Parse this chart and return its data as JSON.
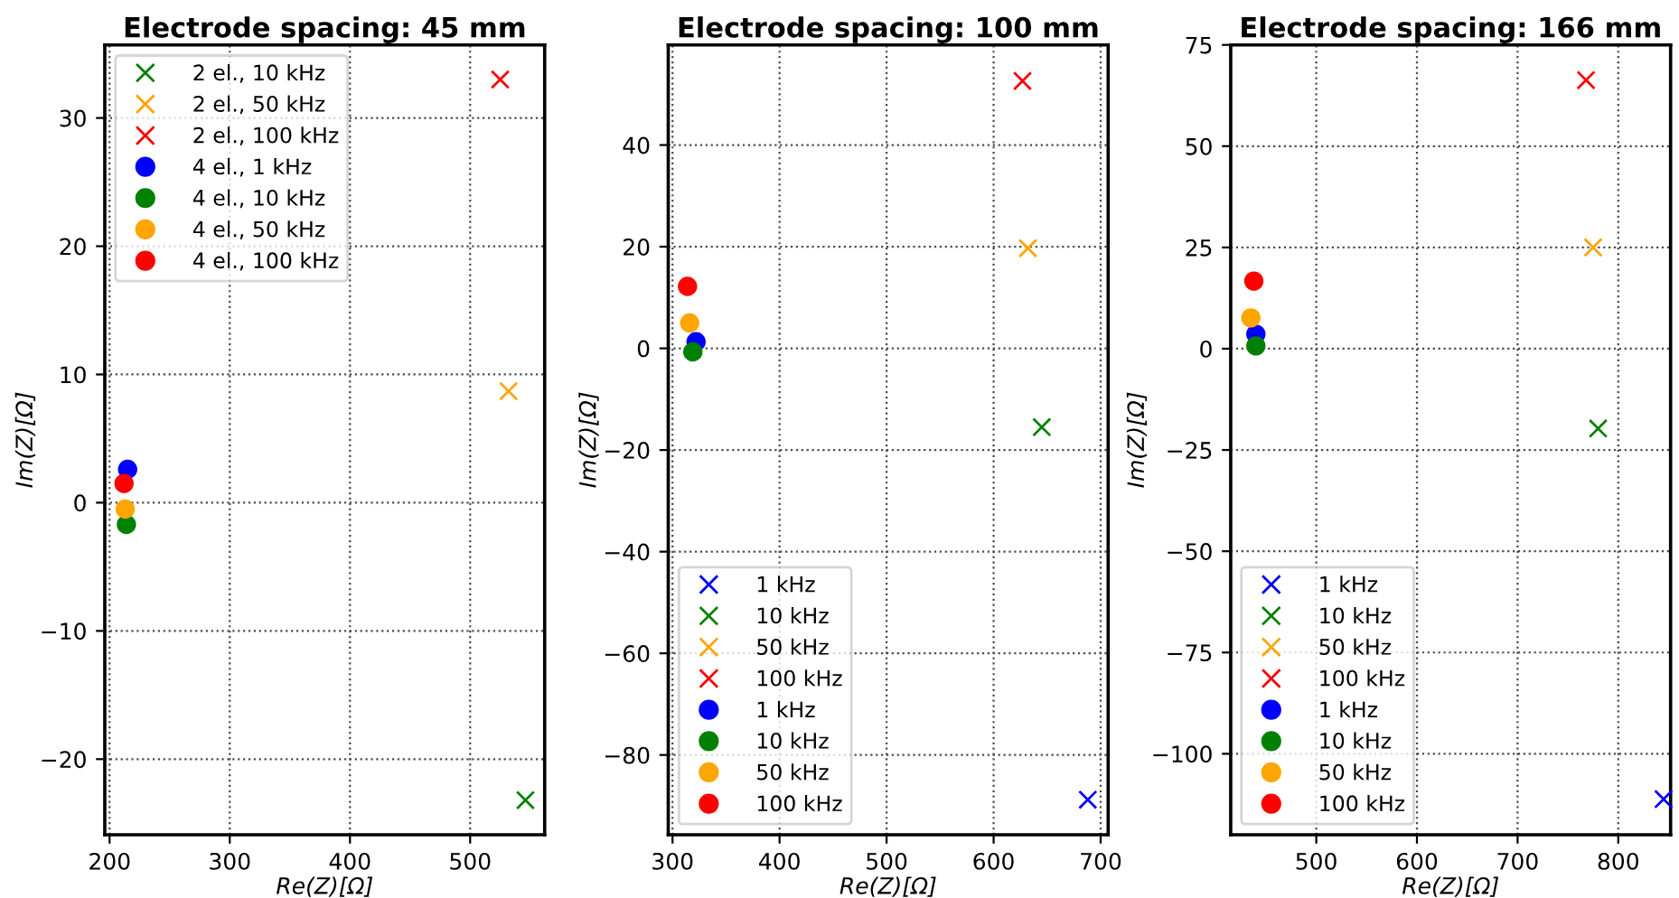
{
  "chart_data": [
    {
      "type": "scatter",
      "title": "Electrode spacing: 45 mm",
      "xlabel": "Re(Z)[Ω]",
      "ylabel": "Im(Z)[Ω]",
      "grid": true,
      "legend": "top left",
      "xlim": [
        196,
        562
      ],
      "ylim": [
        -25.9,
        35.7
      ],
      "xticks": [
        200,
        300,
        400,
        500
      ],
      "yticks": [
        {
          "value": -20,
          "label": "−20"
        },
        {
          "value": -10,
          "label": "−10"
        },
        0,
        10,
        20,
        30
      ],
      "series": [
        {
          "name": "2 el., 10 kHz",
          "color": "#008000",
          "marker": "cross",
          "x": [
            546
          ],
          "values": [
            -23.2
          ]
        },
        {
          "name": "2 el., 50 kHz",
          "color": "#ffa500",
          "marker": "cross",
          "x": [
            532
          ],
          "values": [
            8.7
          ]
        },
        {
          "name": "2 el., 100 kHz",
          "color": "#ff0000",
          "marker": "cross",
          "x": [
            525
          ],
          "values": [
            33
          ]
        },
        {
          "name": "4 el., 1 kHz",
          "color": "#0000ff",
          "marker": "circle",
          "x": [
            215
          ],
          "values": [
            2.6
          ]
        },
        {
          "name": "4 el., 10 kHz",
          "color": "#008000",
          "marker": "circle",
          "x": [
            214
          ],
          "values": [
            -1.7
          ]
        },
        {
          "name": "4 el., 50 kHz",
          "color": "#ffa500",
          "marker": "circle",
          "x": [
            213
          ],
          "values": [
            -0.5
          ]
        },
        {
          "name": "4 el., 100 kHz",
          "color": "#ff0000",
          "marker": "circle",
          "x": [
            212
          ],
          "values": [
            1.5
          ]
        }
      ]
    },
    {
      "type": "scatter",
      "title": "Electrode spacing: 100 mm",
      "xlabel": "Re(Z)[Ω]",
      "ylabel": "Im(Z)[Ω]",
      "grid": true,
      "legend": "bottom left",
      "xlim": [
        296,
        707
      ],
      "ylim": [
        -95.7,
        59.7
      ],
      "xticks": [
        300,
        400,
        500,
        600,
        700
      ],
      "yticks": [
        {
          "value": -80,
          "label": "−80"
        },
        {
          "value": -60,
          "label": "−60"
        },
        {
          "value": -40,
          "label": "−40"
        },
        {
          "value": -20,
          "label": "−20"
        },
        0,
        20,
        40
      ],
      "series": [
        {
          "name": "1 kHz",
          "color": "#0000ff",
          "marker": "cross",
          "x": [
            688
          ],
          "values": [
            -88.8
          ]
        },
        {
          "name": "10 kHz",
          "color": "#008000",
          "marker": "cross",
          "x": [
            645
          ],
          "values": [
            -15.5
          ]
        },
        {
          "name": "50 kHz",
          "color": "#ffa500",
          "marker": "cross",
          "x": [
            632
          ],
          "values": [
            19.7
          ]
        },
        {
          "name": "100 kHz",
          "color": "#ff0000",
          "marker": "cross",
          "x": [
            627
          ],
          "values": [
            52.6
          ]
        },
        {
          "name": "1 kHz",
          "color": "#0000ff",
          "marker": "circle",
          "x": [
            322
          ],
          "values": [
            1.3
          ]
        },
        {
          "name": "10 kHz",
          "color": "#008000",
          "marker": "circle",
          "x": [
            319
          ],
          "values": [
            -0.7
          ]
        },
        {
          "name": "50 kHz",
          "color": "#ffa500",
          "marker": "circle",
          "x": [
            316
          ],
          "values": [
            5.0
          ]
        },
        {
          "name": "100 kHz",
          "color": "#ff0000",
          "marker": "circle",
          "x": [
            314
          ],
          "values": [
            12.2
          ]
        }
      ]
    },
    {
      "type": "scatter",
      "title": "Electrode spacing: 166 mm",
      "xlabel": "Re(Z)[Ω]",
      "ylabel": "Im(Z)[Ω]",
      "grid": true,
      "legend": "bottom left",
      "xlim": [
        415,
        852
      ],
      "ylim": [
        -120,
        75
      ],
      "xticks": [
        500,
        600,
        700,
        800
      ],
      "yticks": [
        {
          "value": -100,
          "label": "−100"
        },
        {
          "value": -75,
          "label": "−75"
        },
        {
          "value": -50,
          "label": "−50"
        },
        {
          "value": -25,
          "label": "−25"
        },
        0,
        25,
        50,
        75
      ],
      "series": [
        {
          "name": "1 kHz",
          "color": "#0000ff",
          "marker": "cross",
          "x": [
            845
          ],
          "values": [
            -111.2
          ]
        },
        {
          "name": "10 kHz",
          "color": "#008000",
          "marker": "cross",
          "x": [
            780
          ],
          "values": [
            -19.7
          ]
        },
        {
          "name": "50 kHz",
          "color": "#ffa500",
          "marker": "cross",
          "x": [
            775
          ],
          "values": [
            25.0
          ]
        },
        {
          "name": "100 kHz",
          "color": "#ff0000",
          "marker": "cross",
          "x": [
            768
          ],
          "values": [
            66.3
          ]
        },
        {
          "name": "1 kHz",
          "color": "#0000ff",
          "marker": "circle",
          "x": [
            440
          ],
          "values": [
            3.6
          ]
        },
        {
          "name": "10 kHz",
          "color": "#008000",
          "marker": "circle",
          "x": [
            440
          ],
          "values": [
            0.7
          ]
        },
        {
          "name": "50 kHz",
          "color": "#ffa500",
          "marker": "circle",
          "x": [
            435
          ],
          "values": [
            7.6
          ]
        },
        {
          "name": "100 kHz",
          "color": "#ff0000",
          "marker": "circle",
          "x": [
            438
          ],
          "values": [
            16.7
          ]
        }
      ]
    }
  ]
}
